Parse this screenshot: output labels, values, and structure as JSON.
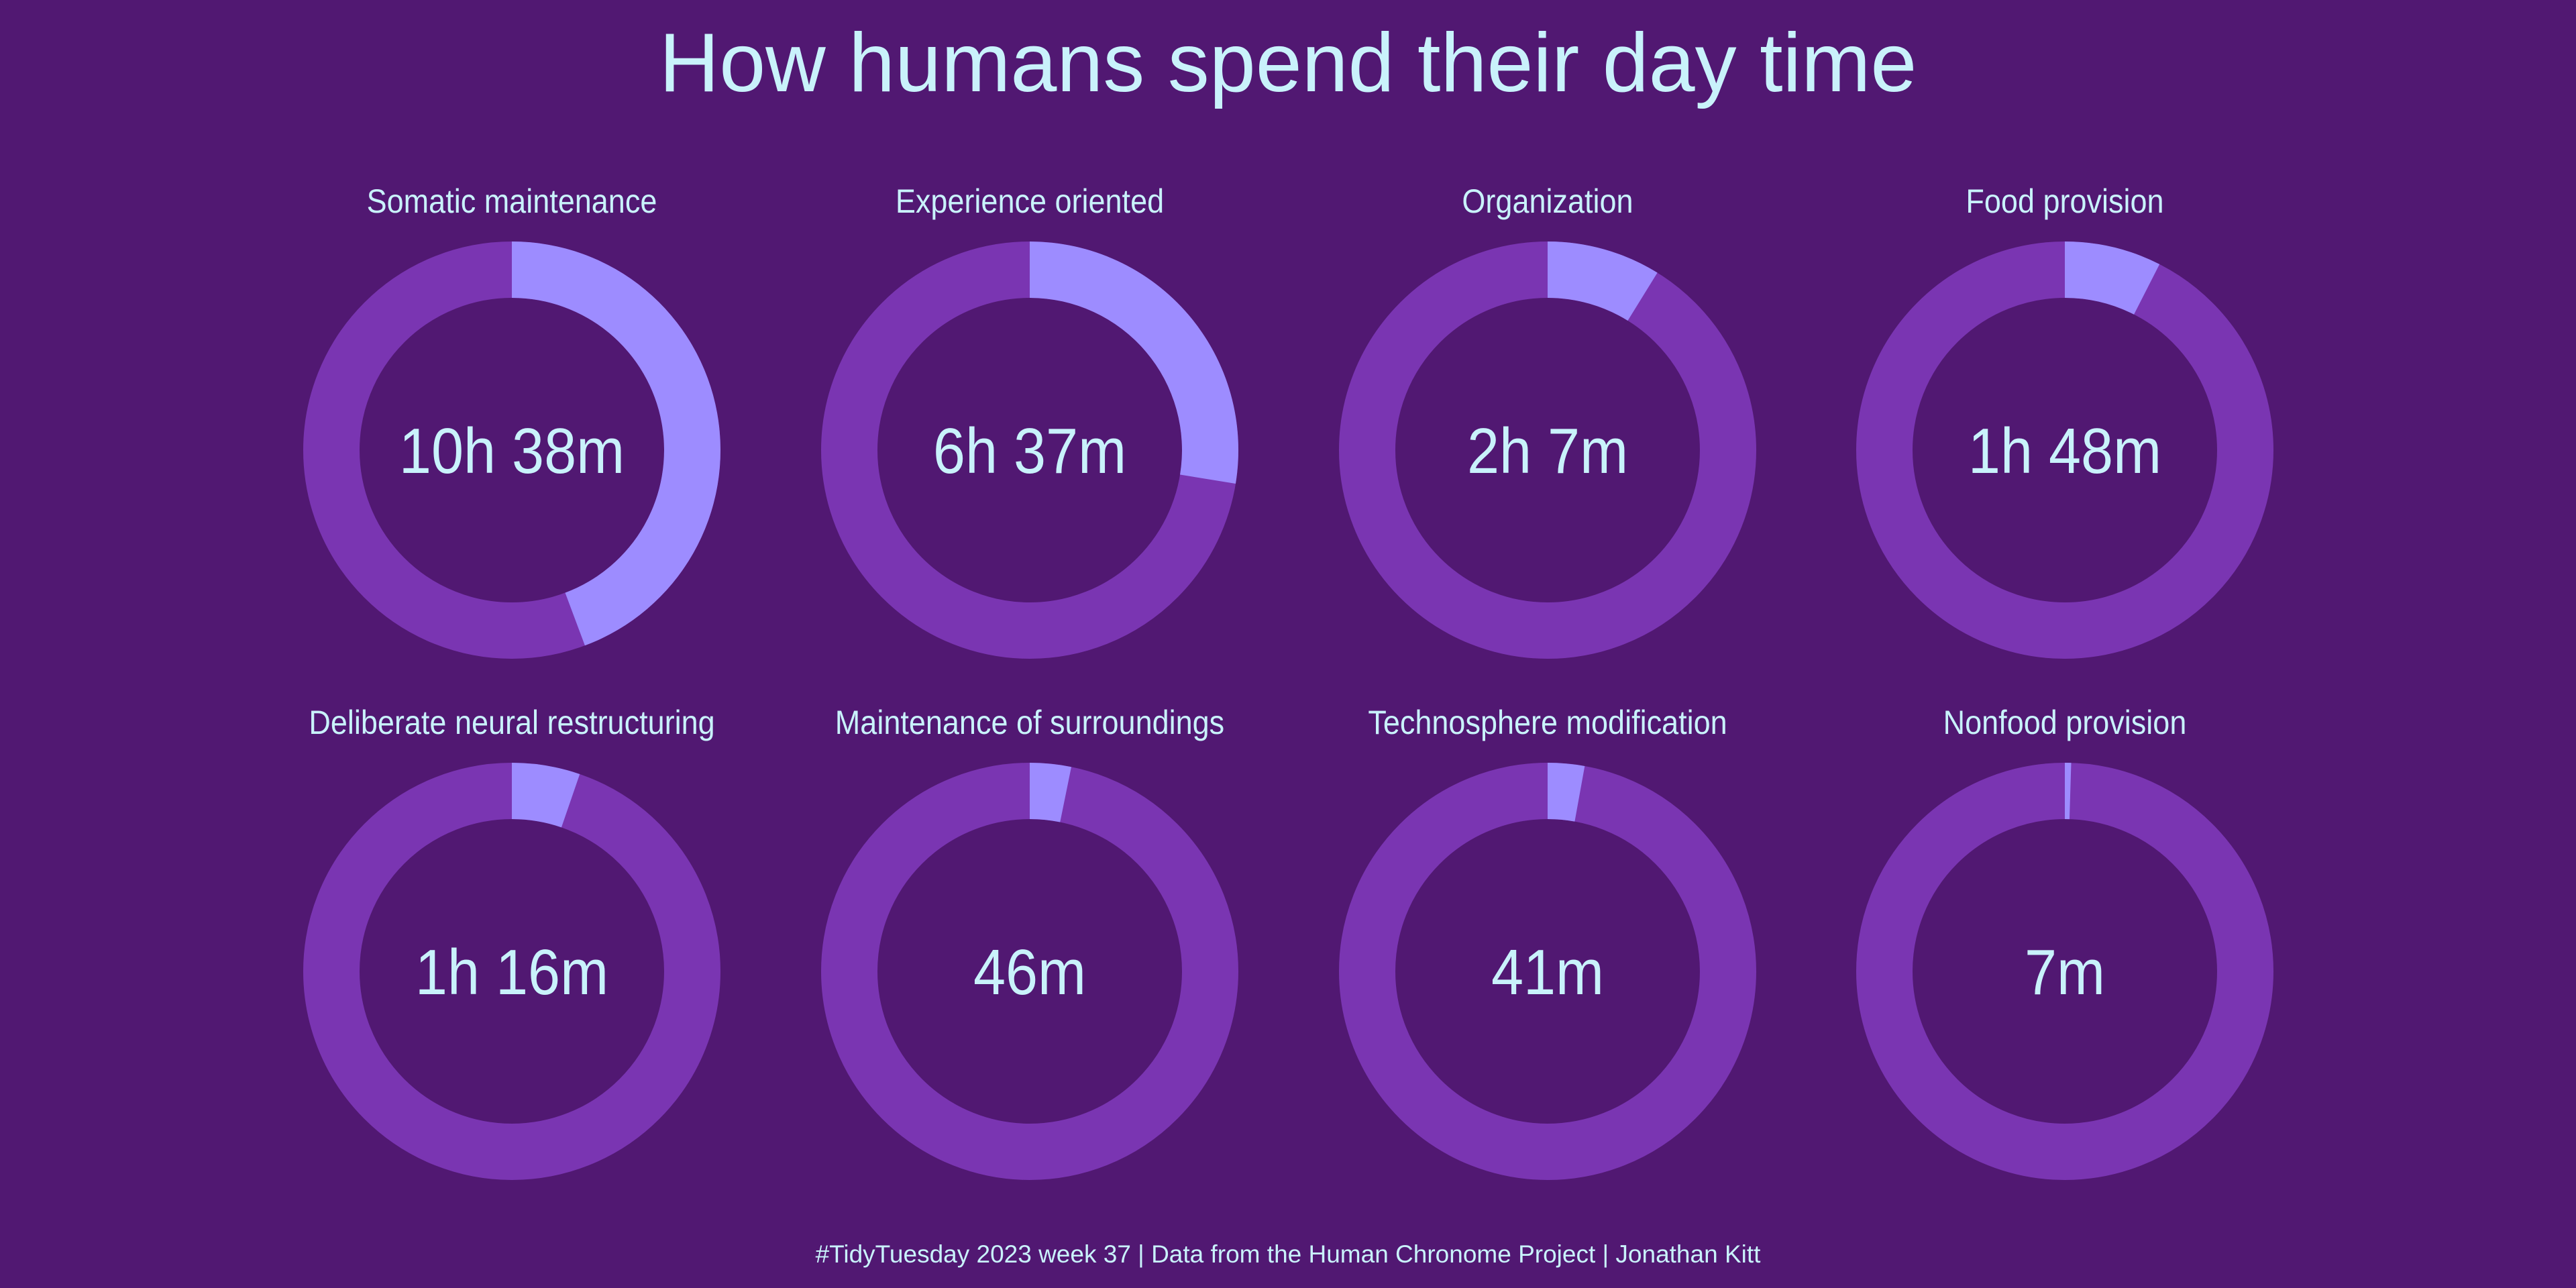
{
  "title": "How humans spend their day time",
  "caption": "#TidyTuesday 2023 week 37 | Data from the Human Chronome Project | Jonathan Kitt",
  "colors": {
    "background": "#511872",
    "ring": "#7a35b2",
    "highlight": "#9d8cff",
    "text": "#c9f2fb"
  },
  "chart_data": {
    "type": "pie",
    "total_minutes": 1440,
    "categories": [
      "Somatic maintenance",
      "Experience oriented",
      "Organization",
      "Food provision",
      "Deliberate neural restructuring",
      "Maintenance of surroundings",
      "Technosphere modification",
      "Nonfood provision"
    ],
    "labels": [
      "10h 38m",
      "6h 37m",
      "2h 7m",
      "1h 48m",
      "1h 16m",
      "46m",
      "41m",
      "7m"
    ],
    "values": [
      638,
      397,
      127,
      108,
      76,
      46,
      41,
      7
    ],
    "grid": false
  }
}
